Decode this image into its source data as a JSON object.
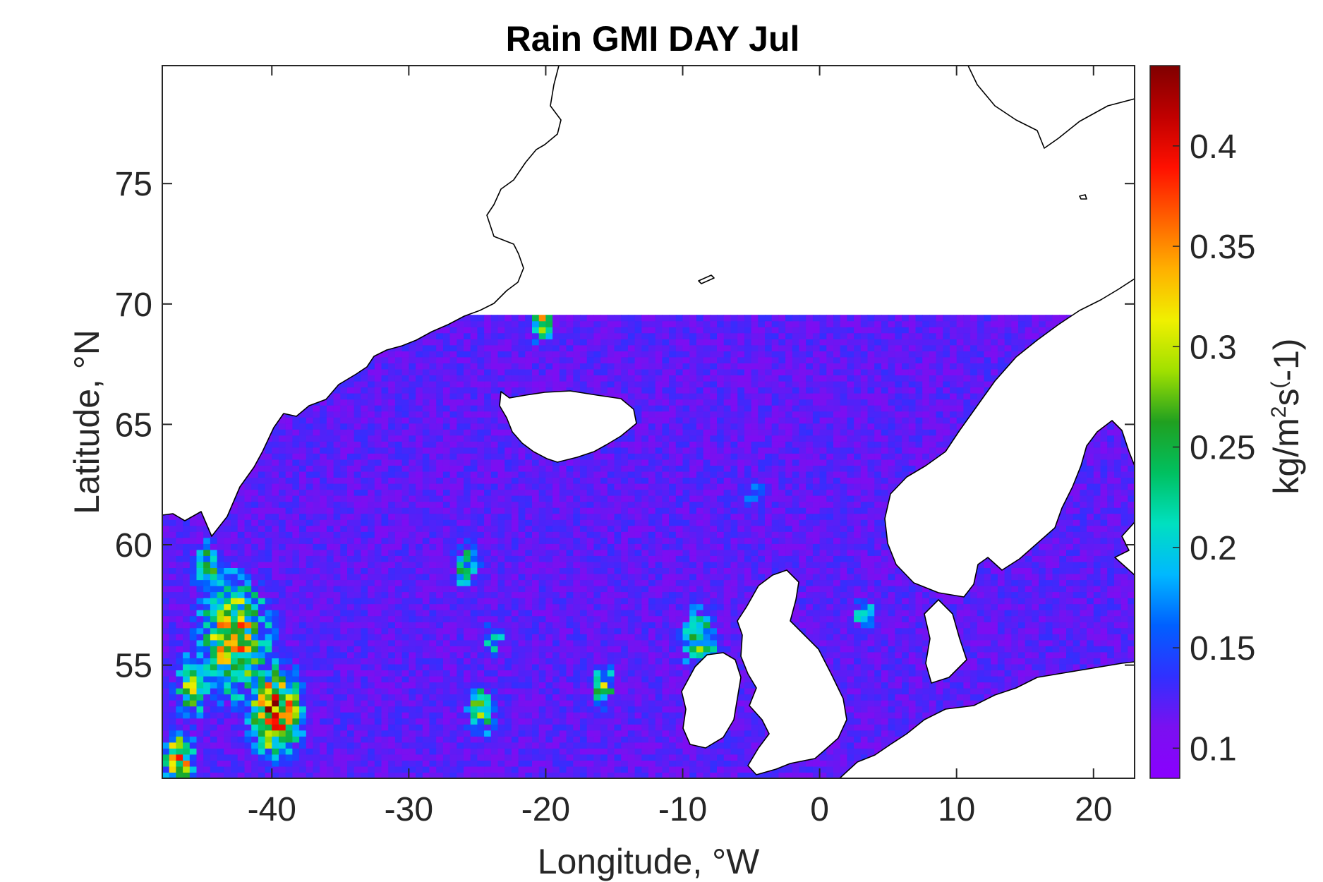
{
  "title": "Rain GMI DAY Jul",
  "xlabel": "Longitude, °W",
  "ylabel": "Latitude, °N",
  "colorbar": {
    "label_main": "kg/m",
    "label_sup1": "2",
    "label_mid": "s",
    "label_sup2": "(",
    "label_end": "-1)",
    "range": [
      0.085,
      0.44
    ],
    "ticks": [
      {
        "value": 0.1,
        "label": "0.1"
      },
      {
        "value": 0.15,
        "label": "0.15"
      },
      {
        "value": 0.2,
        "label": "0.2"
      },
      {
        "value": 0.25,
        "label": "0.25"
      },
      {
        "value": 0.3,
        "label": "0.3"
      },
      {
        "value": 0.35,
        "label": "0.35"
      },
      {
        "value": 0.4,
        "label": "0.4"
      }
    ],
    "colormap": [
      "#8a00ff",
      "#7a10f0",
      "#3030ff",
      "#0060ff",
      "#00b8ff",
      "#00e0c0",
      "#00c060",
      "#20a020",
      "#a0e000",
      "#f0f000",
      "#ffb000",
      "#ff6000",
      "#ff1000",
      "#c00000",
      "#800000"
    ]
  },
  "chart_data": {
    "type": "heatmap",
    "title": "Rain GMI DAY Jul",
    "xlabel": "Longitude, °W",
    "ylabel": "Latitude, °N",
    "xlim": [
      -48,
      23
    ],
    "ylim": [
      50.3,
      79.9
    ],
    "xticks": [
      {
        "value": -40,
        "label": "-40"
      },
      {
        "value": -30,
        "label": "-30"
      },
      {
        "value": -20,
        "label": "-20"
      },
      {
        "value": -10,
        "label": "-10"
      },
      {
        "value": 0,
        "label": "0"
      },
      {
        "value": 10,
        "label": "10"
      },
      {
        "value": 20,
        "label": "20"
      }
    ],
    "yticks": [
      {
        "value": 55,
        "label": "55"
      },
      {
        "value": 60,
        "label": "60"
      },
      {
        "value": 65,
        "label": "65"
      },
      {
        "value": 70,
        "label": "70"
      },
      {
        "value": 75,
        "label": "75"
      }
    ],
    "data_north_limit": 69.5,
    "background_value": 0.12,
    "hotspots": [
      {
        "lon": -43,
        "lat": 56,
        "value": 0.36,
        "extent": 3.5
      },
      {
        "lon": -40,
        "lat": 53,
        "value": 0.42,
        "extent": 2.5
      },
      {
        "lon": -46,
        "lat": 54,
        "value": 0.3,
        "extent": 2
      },
      {
        "lon": -47,
        "lat": 51,
        "value": 0.38,
        "extent": 1.5
      },
      {
        "lon": -45,
        "lat": 59,
        "value": 0.3,
        "extent": 1.5
      },
      {
        "lon": -26,
        "lat": 59,
        "value": 0.26,
        "extent": 1.5
      },
      {
        "lon": -24,
        "lat": 56,
        "value": 0.24,
        "extent": 1.2
      },
      {
        "lon": -25,
        "lat": 53,
        "value": 0.3,
        "extent": 1.5
      },
      {
        "lon": -16,
        "lat": 54,
        "value": 0.3,
        "extent": 1.2
      },
      {
        "lon": -9,
        "lat": 56,
        "value": 0.28,
        "extent": 2
      },
      {
        "lon": -20.5,
        "lat": 69,
        "value": 0.36,
        "extent": 1
      },
      {
        "lon": -5,
        "lat": 62,
        "value": 0.22,
        "extent": 1
      },
      {
        "lon": 3,
        "lat": 57,
        "value": 0.24,
        "extent": 1.2
      }
    ]
  }
}
